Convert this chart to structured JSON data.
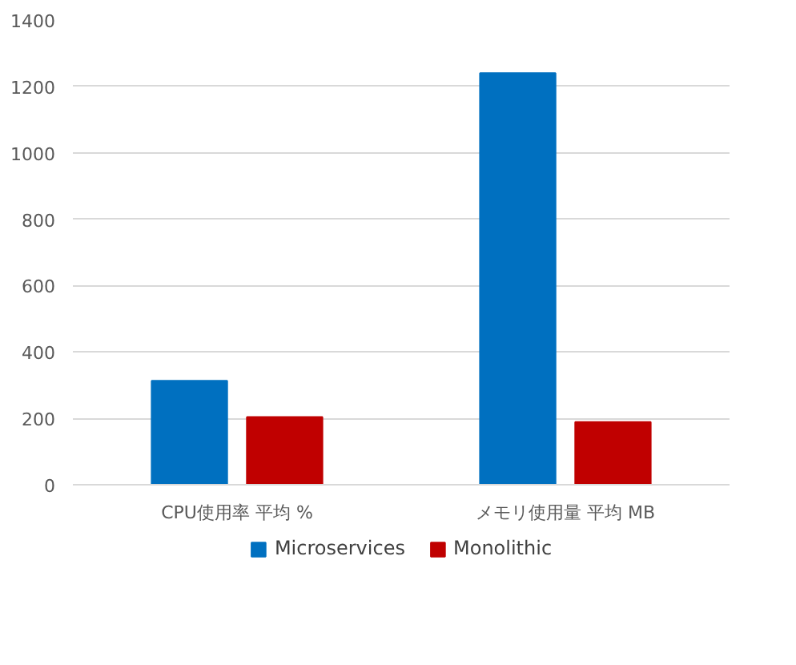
{
  "chart_data": {
    "type": "bar",
    "categories": [
      "CPU使用率 平均 %",
      "メモリ使用量 平均 MB"
    ],
    "series": [
      {
        "name": "Microservices",
        "color": "#0070c0",
        "values": [
          313,
          1240
        ]
      },
      {
        "name": "Monolithic",
        "color": "#c00000",
        "values": [
          204,
          189
        ]
      }
    ],
    "ylim": [
      0,
      1400
    ],
    "yticks": [
      0,
      200,
      400,
      600,
      800,
      1000,
      1200,
      1400
    ],
    "grid": "y",
    "legend": "bottom"
  }
}
